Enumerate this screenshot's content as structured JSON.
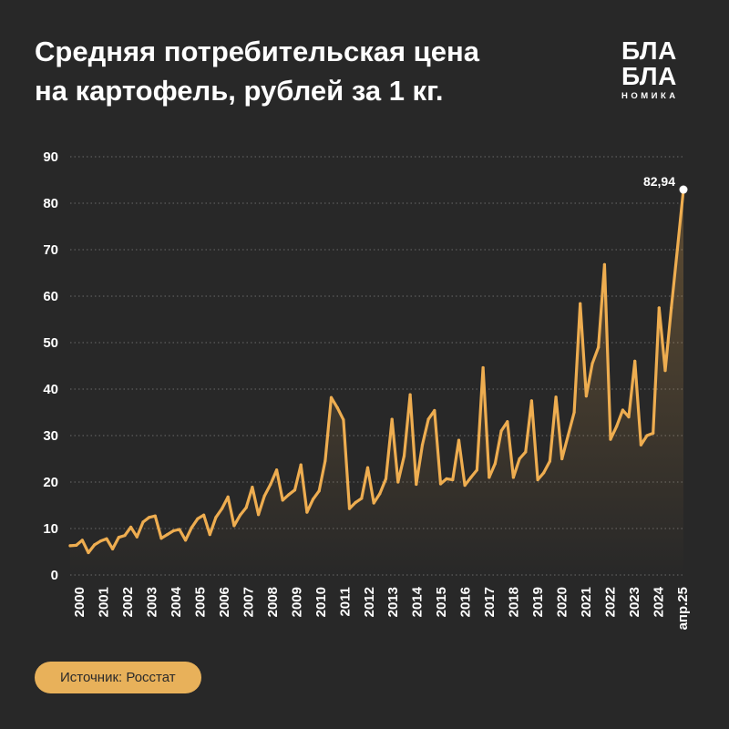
{
  "title_lines": [
    "Средняя потребительская цена",
    "на картофель, рублей за 1 кг."
  ],
  "logo": {
    "line1": "БЛА",
    "line2": "БЛА",
    "line3": "НОМИКА"
  },
  "source": "Источник: Росстат",
  "colors": {
    "background": "#282828",
    "line": "#eead50",
    "accent": "#e8b15a",
    "grid": "#6a6a6a",
    "text": "#ffffff"
  },
  "chart_data": {
    "type": "line",
    "title": "Средняя потребительская цена на картофель, рублей за 1 кг.",
    "xlabel": "",
    "ylabel": "",
    "ylim": [
      0,
      90
    ],
    "yticks": [
      0,
      10,
      20,
      30,
      40,
      50,
      60,
      70,
      80,
      90
    ],
    "grid": "dotted horizontal",
    "xticks": [
      "2000",
      "2001",
      "2002",
      "2003",
      "2004",
      "2005",
      "2006",
      "2007",
      "2008",
      "2009",
      "2010",
      "2011",
      "2012",
      "2013",
      "2014",
      "2015",
      "2016",
      "2017",
      "2018",
      "2019",
      "2020",
      "2021",
      "2022",
      "2023",
      "2024",
      "апр.25"
    ],
    "annotation": {
      "label": "82,94",
      "x": 2025.25,
      "y": 82.94
    },
    "series": [
      {
        "x": [
          2000.0,
          2000.25,
          2000.5,
          2000.75,
          2001.0,
          2001.25,
          2001.5,
          2001.75,
          2002.0,
          2002.25,
          2002.5,
          2002.75,
          2003.0,
          2003.25,
          2003.5,
          2003.75,
          2004.0,
          2004.25,
          2004.5,
          2004.75,
          2005.0,
          2005.25,
          2005.5,
          2005.75,
          2006.0,
          2006.25,
          2006.5,
          2006.75,
          2007.0,
          2007.25,
          2007.5,
          2007.75,
          2008.0,
          2008.25,
          2008.5,
          2008.75,
          2009.0,
          2009.25,
          2009.5,
          2009.75,
          2010.0,
          2010.25,
          2010.5,
          2010.75,
          2011.0,
          2011.25,
          2011.5,
          2011.75,
          2012.0,
          2012.25,
          2012.5,
          2012.75,
          2013.0,
          2013.25,
          2013.5,
          2013.75,
          2014.0,
          2014.25,
          2014.5,
          2014.75,
          2015.0,
          2015.25,
          2015.5,
          2015.75,
          2016.0,
          2016.25,
          2016.5,
          2016.75,
          2017.0,
          2017.25,
          2017.5,
          2017.75,
          2018.0,
          2018.25,
          2018.5,
          2018.75,
          2019.0,
          2019.25,
          2019.5,
          2019.75,
          2020.0,
          2020.25,
          2020.5,
          2020.75,
          2021.0,
          2021.25,
          2021.5,
          2021.75,
          2022.0,
          2022.25,
          2022.5,
          2022.75,
          2023.0,
          2023.25,
          2023.5,
          2023.75,
          2024.0,
          2024.25,
          2024.5,
          2024.75,
          2025.0,
          2025.25
        ],
        "y": [
          6.3,
          6.4,
          7.5,
          4.8,
          6.5,
          7.3,
          7.8,
          5.6,
          8.1,
          8.5,
          10.3,
          8.2,
          11.4,
          12.4,
          12.7,
          7.9,
          8.7,
          9.5,
          9.8,
          7.5,
          10.2,
          12.1,
          12.9,
          8.7,
          12.4,
          14.3,
          16.8,
          10.6,
          12.9,
          14.5,
          18.9,
          13.0,
          17.0,
          19.5,
          22.6,
          16.1,
          17.3,
          18.3,
          23.7,
          13.5,
          16.3,
          18.1,
          24.6,
          38.2,
          36.0,
          33.4,
          14.3,
          15.6,
          16.5,
          23.1,
          15.5,
          17.5,
          20.7,
          33.5,
          20.0,
          25.6,
          38.8,
          19.5,
          28.0,
          33.5,
          35.4,
          19.6,
          20.7,
          20.5,
          29.0,
          19.3,
          21.0,
          22.6,
          44.6,
          21.0,
          24.0,
          31.0,
          33.0,
          21.0,
          25.0,
          26.5,
          37.5,
          20.5,
          22.0,
          24.5,
          38.3,
          25.0,
          30.0,
          35.0,
          58.4,
          38.5,
          45.5,
          49.0,
          66.8,
          29.2,
          32.0,
          35.5,
          34.0,
          46.0,
          28.0,
          30.0,
          30.5,
          57.5,
          44.0,
          57.5,
          70.0,
          82.94
        ]
      }
    ]
  }
}
